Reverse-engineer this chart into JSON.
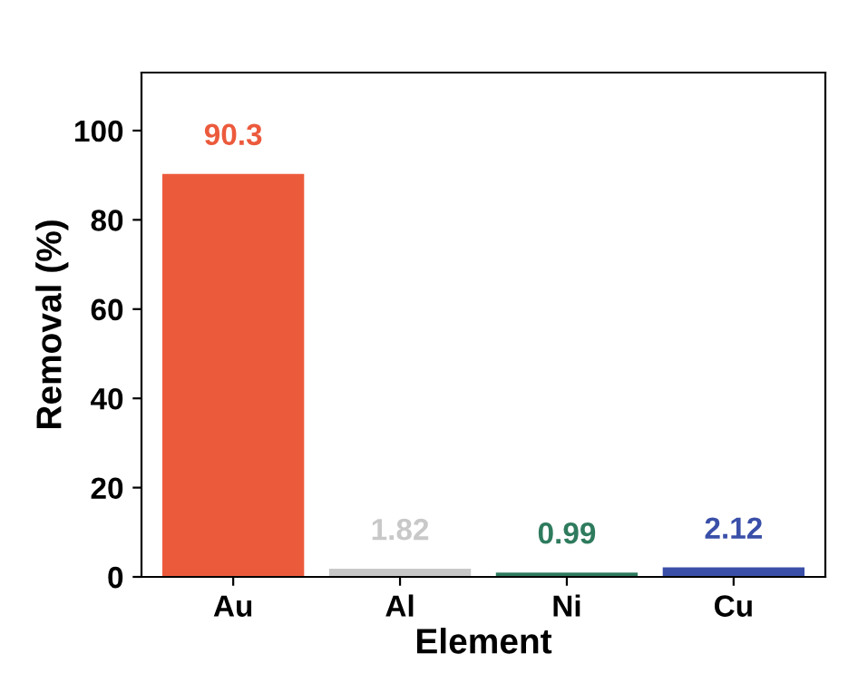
{
  "chart_data": {
    "type": "bar",
    "xlabel": "Element",
    "ylabel": "Removal (%)",
    "categories": [
      "Au",
      "Al",
      "Ni",
      "Cu"
    ],
    "values": [
      90.3,
      1.82,
      0.99,
      2.12
    ],
    "colors": [
      "#ec5a3c",
      "#c8c8c8",
      "#2e7b5e",
      "#3a4fa8"
    ],
    "ylim": [
      0,
      113
    ],
    "yticks": [
      0,
      20,
      40,
      60,
      80,
      100
    ],
    "data_labels": true,
    "grid": false,
    "legend": false
  }
}
